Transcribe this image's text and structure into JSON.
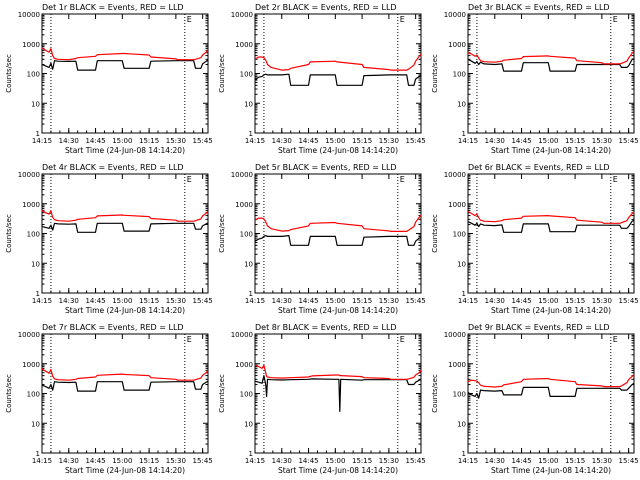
{
  "colors": {
    "events": "#000000",
    "lld": "#ff0000",
    "axis": "#000000",
    "background": "#ffffff"
  },
  "shared": {
    "xlabel": "Start Time (24-Jun-08 14:14:20)",
    "ylabel": "Counts/sec",
    "xtick_labels": [
      "14:15",
      "14:30",
      "14:45",
      "15:00",
      "15:15",
      "15:30",
      "15:45"
    ],
    "xtick_minutes": [
      1,
      16,
      31,
      46,
      61,
      76,
      91
    ],
    "xlim_minutes": [
      1,
      94
    ],
    "ylim": [
      1,
      10000
    ],
    "ytick_labels": [
      "1",
      "10",
      "100",
      "1000",
      "10000"
    ],
    "ytick_values": [
      1,
      10,
      100,
      1000,
      10000
    ],
    "dotted_verticals_minutes": [
      6,
      81
    ],
    "ann_mark": "E"
  },
  "chart_data": [
    {
      "type": "line",
      "title": "Det 1r BLACK = Events, RED = LLD",
      "x": [
        1,
        3,
        5,
        6,
        7,
        8,
        10,
        16,
        20,
        21,
        31,
        32,
        46,
        47,
        61,
        62,
        76,
        77,
        86,
        87,
        90,
        91,
        93,
        94
      ],
      "series": [
        {
          "name": "Events",
          "values": [
            200,
            180,
            160,
            220,
            140,
            270,
            260,
            255,
            260,
            130,
            130,
            270,
            270,
            150,
            150,
            260,
            270,
            270,
            270,
            150,
            150,
            210,
            260,
            280
          ]
        },
        {
          "name": "LLD",
          "values": [
            720,
            600,
            520,
            680,
            400,
            320,
            300,
            290,
            320,
            340,
            380,
            430,
            470,
            470,
            420,
            360,
            310,
            290,
            290,
            300,
            340,
            420,
            520,
            620
          ]
        }
      ]
    },
    {
      "type": "line",
      "title": "Det 2r BLACK = Events, RED = LLD",
      "x": [
        1,
        3,
        5,
        6,
        7,
        8,
        10,
        16,
        20,
        21,
        31,
        32,
        46,
        47,
        61,
        62,
        76,
        77,
        86,
        87,
        90,
        91,
        93,
        94
      ],
      "series": [
        {
          "name": "Events",
          "values": [
            60,
            75,
            80,
            90,
            95,
            90,
            90,
            90,
            95,
            40,
            40,
            90,
            90,
            40,
            40,
            85,
            90,
            90,
            90,
            40,
            40,
            65,
            80,
            85
          ]
        },
        {
          "name": "LLD",
          "values": [
            300,
            360,
            360,
            340,
            280,
            200,
            160,
            130,
            135,
            150,
            200,
            245,
            260,
            245,
            200,
            160,
            135,
            130,
            130,
            140,
            190,
            260,
            380,
            450
          ]
        }
      ]
    },
    {
      "type": "line",
      "title": "Det 3r BLACK = Events, RED = LLD",
      "x": [
        1,
        3,
        5,
        6,
        7,
        8,
        10,
        16,
        20,
        21,
        31,
        32,
        46,
        47,
        61,
        62,
        76,
        77,
        86,
        87,
        90,
        91,
        93,
        94
      ],
      "series": [
        {
          "name": "Events",
          "values": [
            300,
            260,
            220,
            250,
            200,
            240,
            210,
            200,
            210,
            120,
            120,
            230,
            230,
            120,
            120,
            200,
            200,
            200,
            200,
            160,
            160,
            180,
            300,
            320
          ]
        },
        {
          "name": "LLD",
          "values": [
            500,
            450,
            380,
            420,
            330,
            270,
            250,
            240,
            260,
            280,
            320,
            370,
            390,
            380,
            330,
            270,
            230,
            210,
            210,
            220,
            260,
            330,
            480,
            560
          ]
        }
      ]
    },
    {
      "type": "line",
      "title": "Det 4r BLACK = Events, RED = LLD",
      "x": [
        1,
        3,
        5,
        6,
        7,
        8,
        10,
        16,
        20,
        21,
        31,
        32,
        46,
        47,
        61,
        62,
        76,
        77,
        86,
        87,
        90,
        91,
        93,
        94
      ],
      "series": [
        {
          "name": "Events",
          "values": [
            170,
            160,
            150,
            190,
            130,
            220,
            210,
            205,
            210,
            110,
            110,
            220,
            220,
            120,
            120,
            210,
            220,
            220,
            220,
            140,
            140,
            180,
            210,
            230
          ]
        },
        {
          "name": "LLD",
          "values": [
            600,
            500,
            450,
            580,
            350,
            290,
            270,
            260,
            280,
            300,
            340,
            390,
            420,
            410,
            370,
            320,
            280,
            260,
            260,
            270,
            310,
            390,
            480,
            560
          ]
        }
      ]
    },
    {
      "type": "line",
      "title": "Det 5r BLACK = Events, RED = LLD",
      "x": [
        1,
        3,
        5,
        6,
        7,
        8,
        10,
        16,
        20,
        21,
        31,
        32,
        46,
        47,
        61,
        62,
        76,
        77,
        86,
        87,
        90,
        91,
        93,
        94
      ],
      "series": [
        {
          "name": "Events",
          "values": [
            55,
            65,
            70,
            80,
            85,
            80,
            80,
            80,
            85,
            40,
            40,
            80,
            80,
            40,
            40,
            75,
            80,
            80,
            80,
            40,
            40,
            55,
            70,
            75
          ]
        },
        {
          "name": "LLD",
          "values": [
            280,
            330,
            330,
            310,
            250,
            180,
            145,
            120,
            125,
            135,
            180,
            220,
            235,
            220,
            180,
            145,
            122,
            118,
            118,
            128,
            170,
            240,
            350,
            410
          ]
        }
      ]
    },
    {
      "type": "line",
      "title": "Det 6r BLACK = Events, RED = LLD",
      "x": [
        1,
        3,
        5,
        6,
        7,
        8,
        10,
        16,
        20,
        21,
        31,
        32,
        46,
        47,
        61,
        62,
        76,
        77,
        86,
        87,
        90,
        91,
        93,
        94
      ],
      "series": [
        {
          "name": "Events",
          "values": [
            250,
            220,
            190,
            220,
            170,
            210,
            190,
            185,
            195,
            110,
            110,
            210,
            210,
            115,
            115,
            190,
            190,
            190,
            190,
            150,
            150,
            170,
            260,
            280
          ]
        },
        {
          "name": "LLD",
          "values": [
            550,
            470,
            400,
            450,
            340,
            280,
            260,
            250,
            270,
            290,
            330,
            380,
            400,
            390,
            340,
            280,
            240,
            220,
            220,
            230,
            270,
            340,
            470,
            540
          ]
        }
      ]
    },
    {
      "type": "line",
      "title": "Det 7r BLACK = Events, RED = LLD",
      "x": [
        1,
        3,
        5,
        6,
        7,
        8,
        10,
        16,
        20,
        21,
        31,
        32,
        46,
        47,
        61,
        62,
        76,
        77,
        86,
        87,
        90,
        91,
        93,
        94
      ],
      "series": [
        {
          "name": "Events",
          "values": [
            190,
            170,
            150,
            200,
            130,
            250,
            240,
            235,
            240,
            120,
            120,
            250,
            250,
            130,
            130,
            240,
            250,
            250,
            250,
            140,
            140,
            200,
            240,
            260
          ]
        },
        {
          "name": "LLD",
          "values": [
            680,
            560,
            480,
            640,
            380,
            310,
            290,
            280,
            300,
            320,
            360,
            410,
            450,
            440,
            400,
            340,
            300,
            280,
            280,
            290,
            330,
            410,
            500,
            600
          ]
        }
      ]
    },
    {
      "type": "line",
      "title": "Det 8r BLACK = Events, RED = LLD",
      "x": [
        1,
        3,
        5,
        6,
        7,
        7.5,
        8,
        10,
        16,
        21,
        31,
        33,
        46,
        48,
        48.5,
        49,
        61,
        62,
        76,
        77,
        86,
        87,
        90,
        91,
        93,
        94
      ],
      "series": [
        {
          "name": "Events",
          "values": [
            260,
            240,
            220,
            400,
            200,
            80,
            300,
            290,
            285,
            290,
            300,
            310,
            300,
            300,
            25,
            300,
            280,
            290,
            290,
            290,
            290,
            200,
            200,
            240,
            280,
            300
          ]
        },
        {
          "name": "LLD",
          "values": [
            900,
            800,
            700,
            900,
            500,
            380,
            360,
            340,
            330,
            340,
            360,
            390,
            420,
            420,
            400,
            400,
            370,
            340,
            320,
            300,
            300,
            310,
            350,
            420,
            500,
            600
          ]
        }
      ]
    },
    {
      "type": "line",
      "title": "Det 9r BLACK = Events, RED = LLD",
      "x": [
        1,
        3,
        5,
        6,
        7,
        8,
        10,
        16,
        20,
        21,
        31,
        32,
        46,
        47,
        61,
        62,
        76,
        77,
        86,
        87,
        90,
        91,
        93,
        94
      ],
      "series": [
        {
          "name": "Events",
          "values": [
            110,
            90,
            80,
            100,
            70,
            130,
            125,
            120,
            125,
            90,
            90,
            160,
            160,
            80,
            80,
            150,
            150,
            150,
            150,
            130,
            130,
            150,
            200,
            220
          ]
        },
        {
          "name": "LLD",
          "values": [
            250,
            280,
            270,
            260,
            230,
            190,
            175,
            165,
            175,
            195,
            250,
            300,
            320,
            300,
            250,
            200,
            180,
            170,
            170,
            180,
            230,
            290,
            380,
            430
          ]
        }
      ]
    }
  ]
}
